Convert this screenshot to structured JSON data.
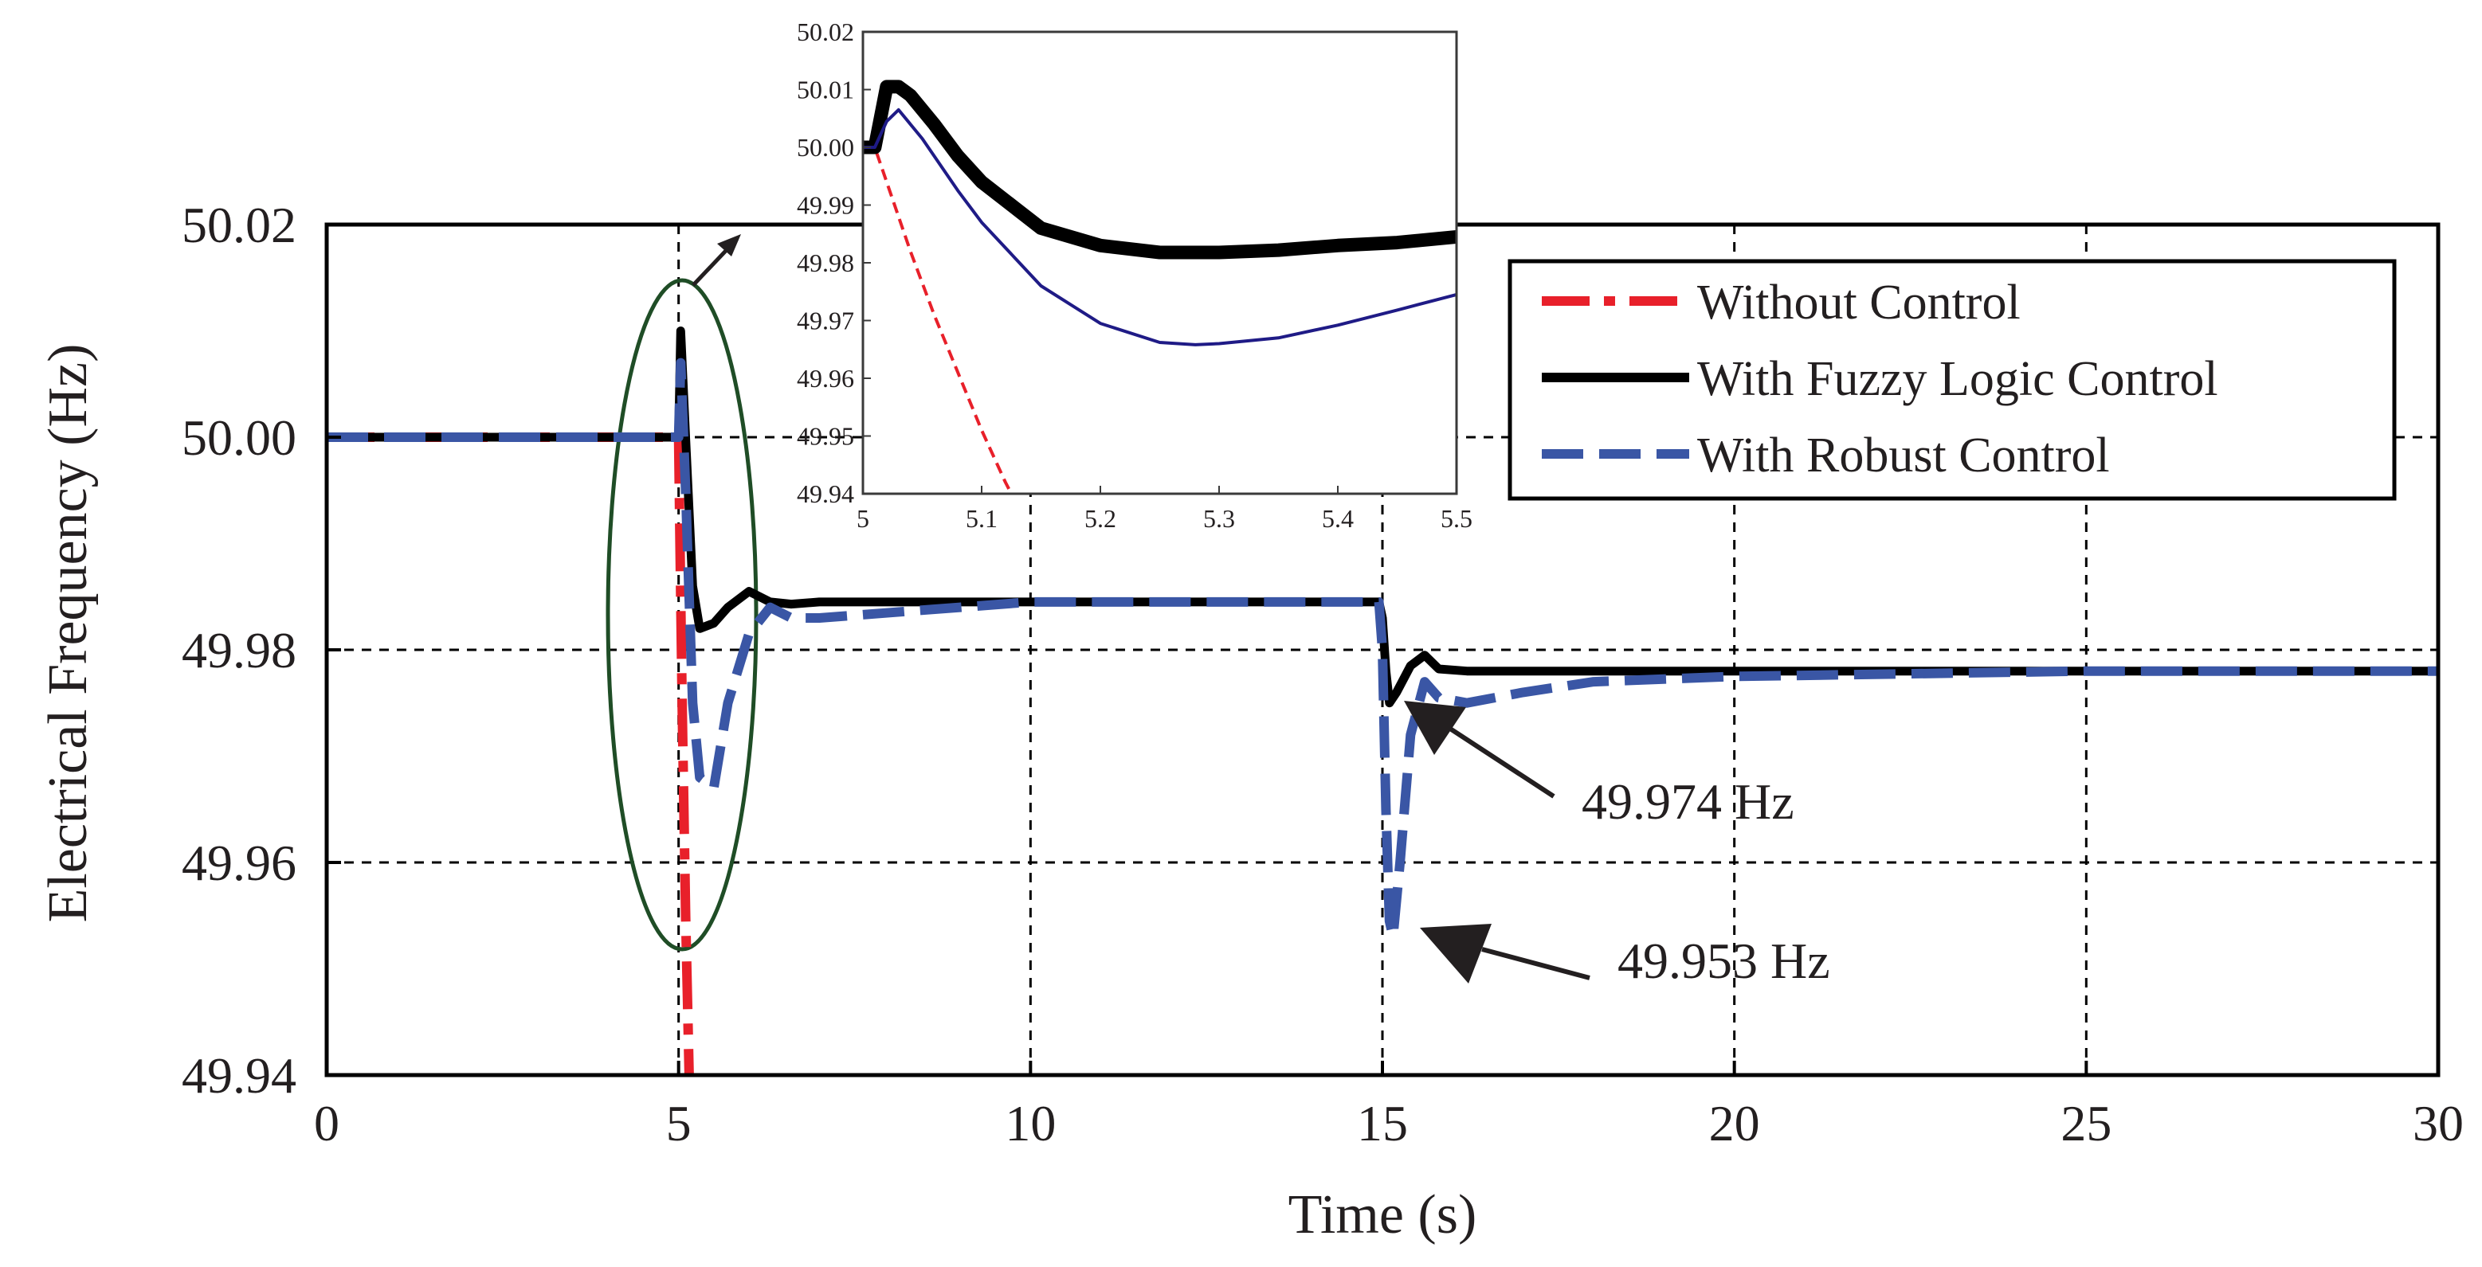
{
  "chart_data": [
    {
      "type": "line",
      "id": "main",
      "title": "",
      "xlabel": "Time (s)",
      "ylabel": "Electrical Frequency (Hz)",
      "xlim": [
        0,
        30
      ],
      "ylim": [
        49.94,
        50.02
      ],
      "xticks": [
        0,
        5,
        10,
        15,
        20,
        25,
        30
      ],
      "xtick_labels": [
        "0",
        "5",
        "10",
        "15",
        "20",
        "25",
        "30"
      ],
      "yticks": [
        49.94,
        49.96,
        49.98,
        50.0,
        50.02
      ],
      "ytick_labels": [
        "49.94",
        "49.96",
        "49.98",
        "50.00",
        "50.02"
      ],
      "grid": true,
      "legend_position": "top-right",
      "series": [
        {
          "name": "Without Control",
          "color": "#e8202a",
          "style": "dash-dot",
          "x": [
            0,
            4.9,
            5.0,
            5.02,
            5.05,
            5.1,
            5.15
          ],
          "y": [
            50.0,
            50.0,
            50.0,
            49.99,
            49.975,
            49.955,
            49.94
          ]
        },
        {
          "name": "With Fuzzy Logic Control",
          "color": "#000000",
          "style": "solid",
          "x": [
            0,
            4.9,
            5.0,
            5.03,
            5.1,
            5.2,
            5.3,
            5.5,
            5.7,
            6.0,
            6.3,
            6.6,
            7.0,
            8.0,
            9.0,
            10.0,
            12.0,
            14.0,
            14.95,
            15.0,
            15.05,
            15.1,
            15.2,
            15.4,
            15.6,
            15.8,
            16.2,
            17.0,
            20.0,
            25.0,
            30.0
          ],
          "y": [
            50.0,
            50.0,
            50.0,
            50.01,
            50.0,
            49.986,
            49.982,
            49.9825,
            49.984,
            49.9855,
            49.9845,
            49.9843,
            49.9845,
            49.9845,
            49.9845,
            49.9845,
            49.9845,
            49.9845,
            49.9845,
            49.983,
            49.978,
            49.975,
            49.976,
            49.9785,
            49.9795,
            49.9782,
            49.978,
            49.978,
            49.978,
            49.978,
            49.978
          ]
        },
        {
          "name": "With Robust Control",
          "color": "#3a56a5",
          "style": "dashed",
          "x": [
            0,
            4.9,
            5.0,
            5.03,
            5.1,
            5.2,
            5.3,
            5.5,
            5.7,
            6.0,
            6.3,
            6.6,
            7.0,
            8.0,
            9.0,
            10.0,
            12.0,
            14.0,
            14.95,
            15.0,
            15.05,
            15.1,
            15.15,
            15.25,
            15.4,
            15.6,
            15.8,
            16.2,
            17.0,
            18.0,
            20.0,
            25.0,
            30.0
          ],
          "y": [
            50.0,
            50.0,
            50.0,
            50.007,
            49.995,
            49.975,
            49.968,
            49.967,
            49.975,
            49.9815,
            49.984,
            49.983,
            49.983,
            49.9835,
            49.984,
            49.9845,
            49.9845,
            49.9845,
            49.9845,
            49.98,
            49.965,
            49.9545,
            49.953,
            49.96,
            49.972,
            49.977,
            49.9755,
            49.975,
            49.976,
            49.977,
            49.9775,
            49.978,
            49.978
          ]
        }
      ],
      "annotations": [
        {
          "text": "49.974 Hz",
          "x": 15.3,
          "y": 49.974
        },
        {
          "text": "49.953 Hz",
          "x": 15.2,
          "y": 49.953
        }
      ]
    },
    {
      "type": "line",
      "id": "inset",
      "title": "",
      "xlabel": "",
      "ylabel": "",
      "xlim": [
        5,
        5.5
      ],
      "ylim": [
        49.94,
        50.02
      ],
      "xticks": [
        5,
        5.1,
        5.2,
        5.3,
        5.4,
        5.5
      ],
      "xtick_labels": [
        "5",
        "5.1",
        "5.2",
        "5.3",
        "5.4",
        "5.5"
      ],
      "yticks": [
        49.94,
        49.95,
        49.96,
        49.97,
        49.98,
        49.99,
        50.0,
        50.01,
        50.02
      ],
      "ytick_labels": [
        "49.94",
        "49.95",
        "49.96",
        "49.97",
        "49.98",
        "49.99",
        "50.00",
        "50.01",
        "50.02"
      ],
      "grid": false,
      "series": [
        {
          "name": "Without Control",
          "color": "#e8202a",
          "style": "dashed",
          "x": [
            5.0,
            5.01,
            5.02,
            5.04,
            5.06,
            5.08,
            5.1,
            5.12,
            5.125
          ],
          "y": [
            50.0,
            50.0,
            49.994,
            49.982,
            49.971,
            49.961,
            49.951,
            49.942,
            49.94
          ]
        },
        {
          "name": "With Fuzzy Logic Control",
          "color": "#000000",
          "style": "solid",
          "x": [
            5.0,
            5.01,
            5.02,
            5.03,
            5.04,
            5.06,
            5.08,
            5.1,
            5.15,
            5.2,
            5.25,
            5.3,
            5.35,
            5.4,
            5.45,
            5.5
          ],
          "y": [
            50.0,
            50.0,
            50.0105,
            50.0105,
            50.009,
            50.004,
            49.9985,
            49.994,
            49.986,
            49.983,
            49.9818,
            49.9818,
            49.9822,
            49.983,
            49.9835,
            49.9845
          ]
        },
        {
          "name": "With Robust Control",
          "color": "#1f1b86",
          "style": "solid",
          "x": [
            5.0,
            5.01,
            5.02,
            5.03,
            5.05,
            5.08,
            5.1,
            5.15,
            5.2,
            5.25,
            5.28,
            5.3,
            5.35,
            5.4,
            5.45,
            5.5
          ],
          "y": [
            50.0,
            50.0,
            50.0045,
            50.0065,
            50.0015,
            49.9925,
            49.987,
            49.976,
            49.9695,
            49.9662,
            49.9658,
            49.966,
            49.967,
            49.9692,
            49.9718,
            49.9745
          ]
        }
      ]
    }
  ]
}
